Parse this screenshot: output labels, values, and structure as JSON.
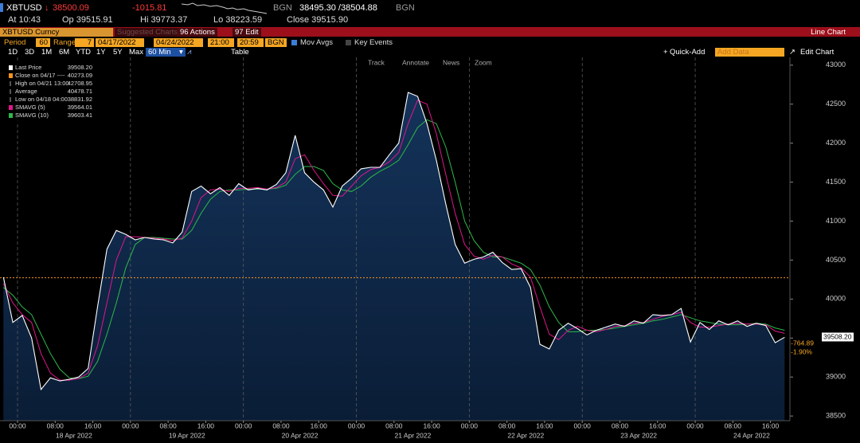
{
  "header": {
    "ticker": "XBTUSD",
    "last": "38500.09",
    "change": "-1015.81",
    "source1": "BGN",
    "bid_ask": "38495.30 /38504.88",
    "source2": "BGN",
    "time": "At 10:43",
    "open": "Op 39515.91",
    "high": "Hi 39773.37",
    "low": "Lo 38223.59",
    "close": "Close 39515.90"
  },
  "toolbar": {
    "security": "XBTUSD Curncy",
    "suggested": "Suggested Charts",
    "actions": "96 Actions",
    "edit": "97 Edit",
    "chart_type": "Line Chart"
  },
  "settings": {
    "period_label": "Period",
    "period": "60",
    "range_label": "Range",
    "range": "7",
    "start_date": "04/17/2022",
    "end_date": "04/24/2022",
    "start_time": "21:00",
    "end_time": "20:59",
    "source": "BGN",
    "mov_avgs": "Mov Avgs",
    "key_events": "Key Events"
  },
  "timeframes": [
    "1D",
    "3D",
    "1M",
    "6M",
    "YTD",
    "1Y",
    "5Y",
    "Max",
    "60 Min"
  ],
  "table": "Table",
  "quick_add": "Quick-Add",
  "add_data": "Add Data",
  "edit_chart": "Edit Chart",
  "chart_tools": [
    "Track",
    "Annotate",
    "News",
    "Zoom"
  ],
  "chart_data": {
    "type": "line",
    "ylim": [
      38440,
      43100
    ],
    "yticks": [
      38500,
      39000,
      39500,
      40000,
      40500,
      41000,
      41500,
      42000,
      42500,
      43000
    ],
    "grid": true,
    "x_time_labels": [
      "00:00",
      "08:00",
      "16:00",
      "00:00",
      "08:00",
      "16:00",
      "00:00",
      "08:00",
      "16:00",
      "00:00",
      "08:00",
      "16:00",
      "00:00",
      "08:00",
      "16:00",
      "00:00",
      "08:00",
      "16:00",
      "00:00",
      "08:00",
      "16:00"
    ],
    "x_day_labels": [
      "18 Apr 2022",
      "19 Apr 2022",
      "20 Apr 2022",
      "21 Apr 2022",
      "22 Apr 2022",
      "23 Apr 2022",
      "24 Apr 2022"
    ],
    "series": [
      {
        "name": "Last Price",
        "color": "#ffffff",
        "last": 39508.2,
        "last_label": "39508.20",
        "values": [
          40280,
          39700,
          39790,
          39500,
          38840,
          38990,
          38950,
          38970,
          39000,
          39110,
          39900,
          40640,
          40880,
          40830,
          40760,
          40790,
          40770,
          40760,
          40720,
          40860,
          41380,
          41450,
          41350,
          41430,
          41330,
          41480,
          41400,
          41420,
          41400,
          41470,
          41620,
          42100,
          41620,
          41500,
          41400,
          41180,
          41450,
          41550,
          41670,
          41690,
          41690,
          41850,
          42000,
          42650,
          42600,
          42250,
          41780,
          41220,
          40700,
          40460,
          40510,
          40540,
          40600,
          40470,
          40380,
          40390,
          40150,
          39420,
          39360,
          39600,
          39690,
          39620,
          39540,
          39600,
          39640,
          39680,
          39650,
          39720,
          39690,
          39800,
          39790,
          39800,
          39880,
          39450,
          39700,
          39610,
          39720,
          39670,
          39720,
          39650,
          39690,
          39660,
          39440,
          39510
        ]
      },
      {
        "name": "SMAVG (5)",
        "color": "#e0168c",
        "last": 39564.01,
        "values": [
          40200,
          39950,
          39800,
          39700,
          39300,
          39050,
          38960,
          38960,
          38980,
          39050,
          39400,
          39950,
          40500,
          40800,
          40800,
          40790,
          40780,
          40770,
          40750,
          40780,
          41000,
          41300,
          41400,
          41410,
          41380,
          41420,
          41420,
          41430,
          41410,
          41430,
          41500,
          41800,
          41850,
          41650,
          41480,
          41330,
          41320,
          41450,
          41580,
          41660,
          41690,
          41760,
          41880,
          42250,
          42550,
          42500,
          42120,
          41600,
          41100,
          40700,
          40550,
          40510,
          40560,
          40540,
          40450,
          40400,
          40280,
          39900,
          39550,
          39480,
          39600,
          39650,
          39600,
          39580,
          39610,
          39650,
          39660,
          39690,
          39700,
          39740,
          39780,
          39800,
          39830,
          39700,
          39640,
          39640,
          39660,
          39680,
          39690,
          39680,
          39680,
          39670,
          39590,
          39560
        ]
      },
      {
        "name": "SMAVG (10)",
        "color": "#2fb84a",
        "last": 39603.41,
        "values": [
          40150,
          40050,
          39900,
          39800,
          39550,
          39300,
          39100,
          38990,
          38980,
          39010,
          39200,
          39550,
          39950,
          40400,
          40700,
          40790,
          40790,
          40780,
          40770,
          40770,
          40880,
          41100,
          41280,
          41380,
          41400,
          41400,
          41410,
          41410,
          41410,
          41420,
          41460,
          41600,
          41700,
          41700,
          41650,
          41480,
          41400,
          41380,
          41450,
          41560,
          41640,
          41700,
          41780,
          41980,
          42200,
          42300,
          42250,
          41950,
          41500,
          41000,
          40750,
          40600,
          40540,
          40540,
          40500,
          40460,
          40380,
          40180,
          39900,
          39700,
          39580,
          39580,
          39600,
          39600,
          39610,
          39630,
          39650,
          39670,
          39690,
          39720,
          39740,
          39770,
          39800,
          39760,
          39720,
          39700,
          39680,
          39670,
          39670,
          39680,
          39690,
          39680,
          39630,
          39600
        ]
      }
    ],
    "stats": [
      {
        "label": "Close on 04/17 ----",
        "value": 40273.09,
        "color": "#f7941d"
      },
      {
        "label": "High on 04/21 13:00",
        "value": 42708.95
      },
      {
        "label": "Average",
        "value": 40478.71
      },
      {
        "label": "Low on 04/18 04:00",
        "value": 38831.92
      }
    ],
    "change_label": "-764.89",
    "change_pct": "-1.90%"
  }
}
